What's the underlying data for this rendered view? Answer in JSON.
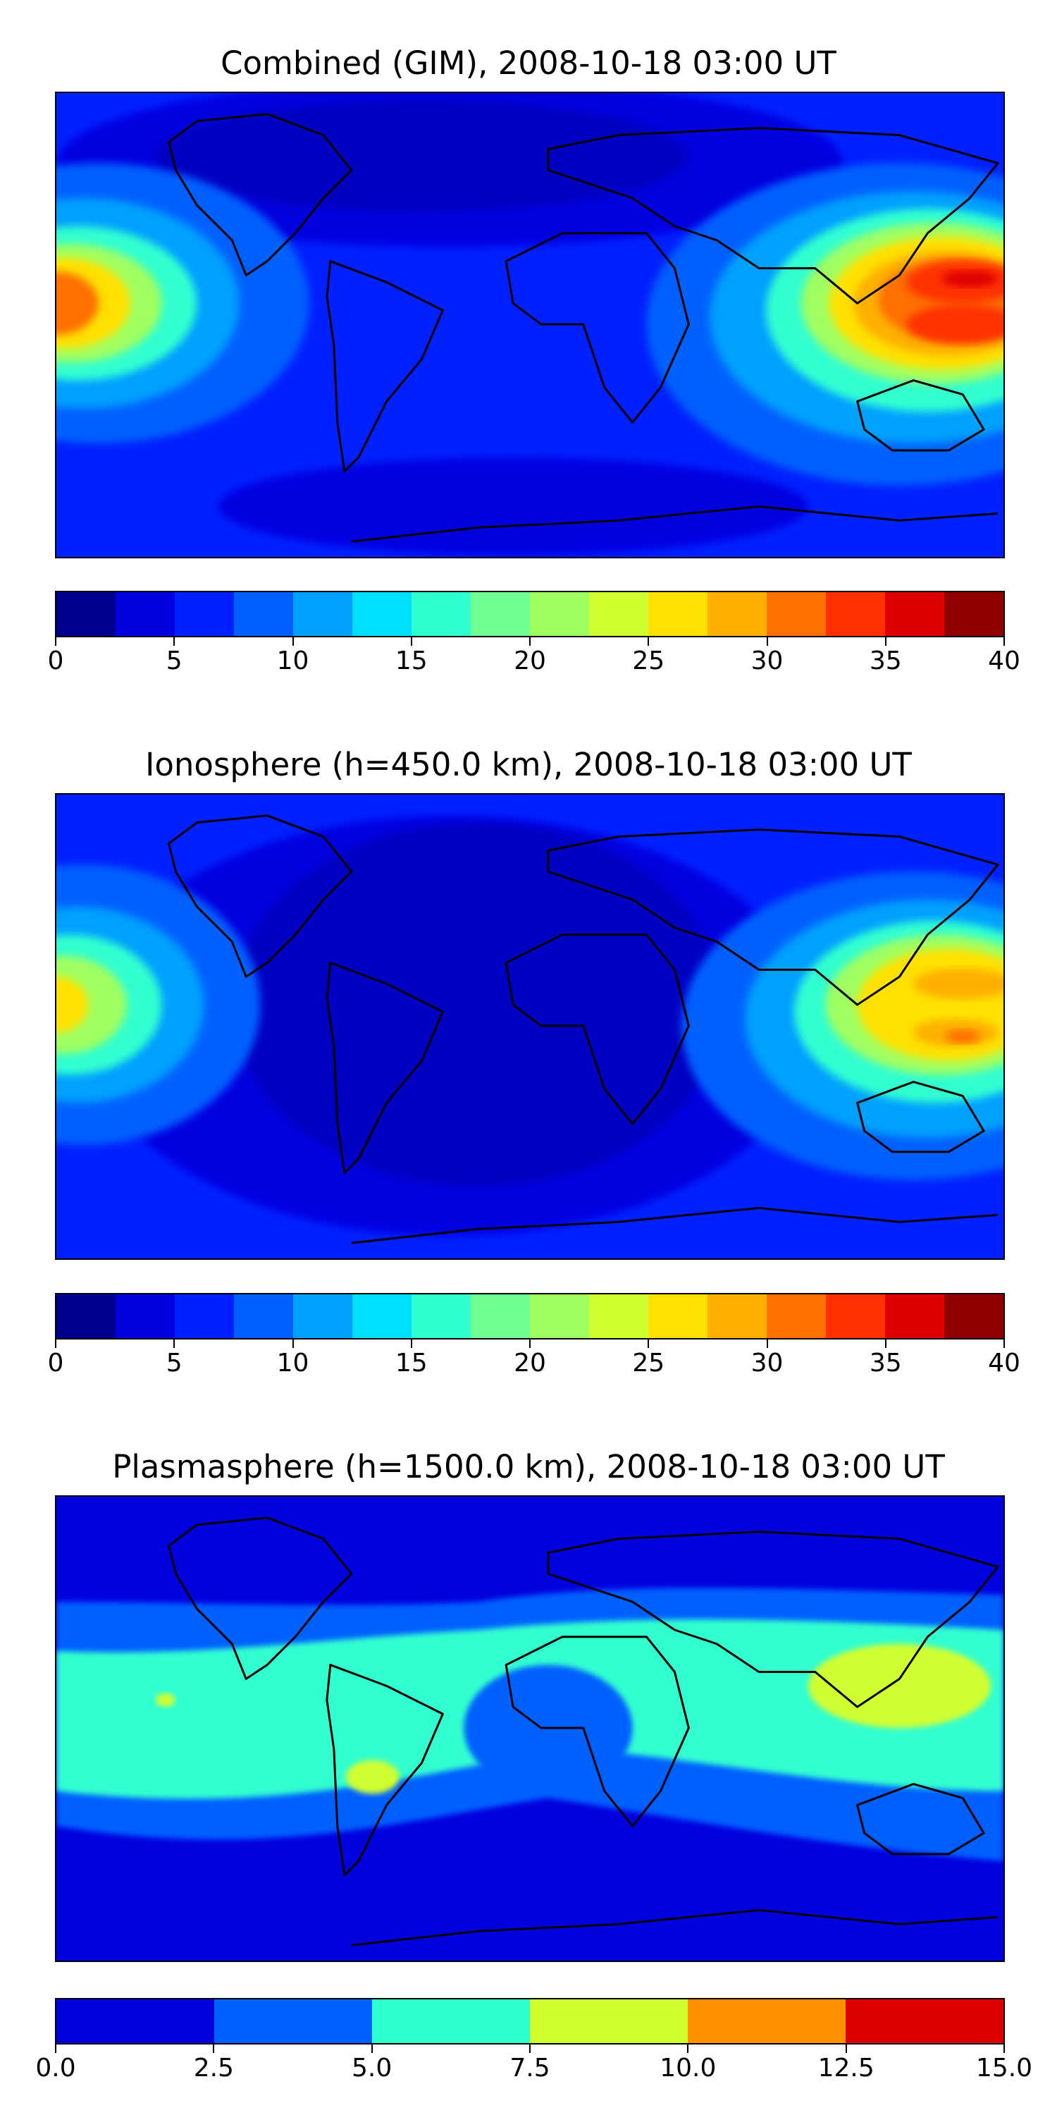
{
  "panels": [
    {
      "title": "Combined (GIM), 2008-10-18 03:00 UT",
      "colorbar": {
        "colors": [
          "#00008f",
          "#0000df",
          "#0020ff",
          "#0060ff",
          "#00a0ff",
          "#00dfff",
          "#30ffd0",
          "#70ff90",
          "#a0ff60",
          "#d0ff30",
          "#ffe000",
          "#ffb000",
          "#ff7000",
          "#ff3000",
          "#df0000",
          "#900000"
        ],
        "ticks": [
          "0",
          "5",
          "10",
          "15",
          "20",
          "25",
          "30",
          "35",
          "40"
        ]
      }
    },
    {
      "title": "Ionosphere  (h=450.0 km), 2008-10-18 03:00 UT",
      "colorbar": {
        "colors": [
          "#00008f",
          "#0000df",
          "#0020ff",
          "#0060ff",
          "#00a0ff",
          "#00dfff",
          "#30ffd0",
          "#70ff90",
          "#a0ff60",
          "#d0ff30",
          "#ffe000",
          "#ffb000",
          "#ff7000",
          "#ff3000",
          "#df0000",
          "#900000"
        ],
        "ticks": [
          "0",
          "5",
          "10",
          "15",
          "20",
          "25",
          "30",
          "35",
          "40"
        ]
      }
    },
    {
      "title": "Plasmasphere (h=1500.0 km), 2008-10-18 03:00 UT",
      "colorbar": {
        "colors": [
          "#0000df",
          "#0060ff",
          "#30ffd0",
          "#d0ff30",
          "#ff9000",
          "#df0000"
        ],
        "ticks": [
          "0.0",
          "2.5",
          "5.0",
          "7.5",
          "10.0",
          "12.5",
          "15.0"
        ]
      }
    }
  ]
}
